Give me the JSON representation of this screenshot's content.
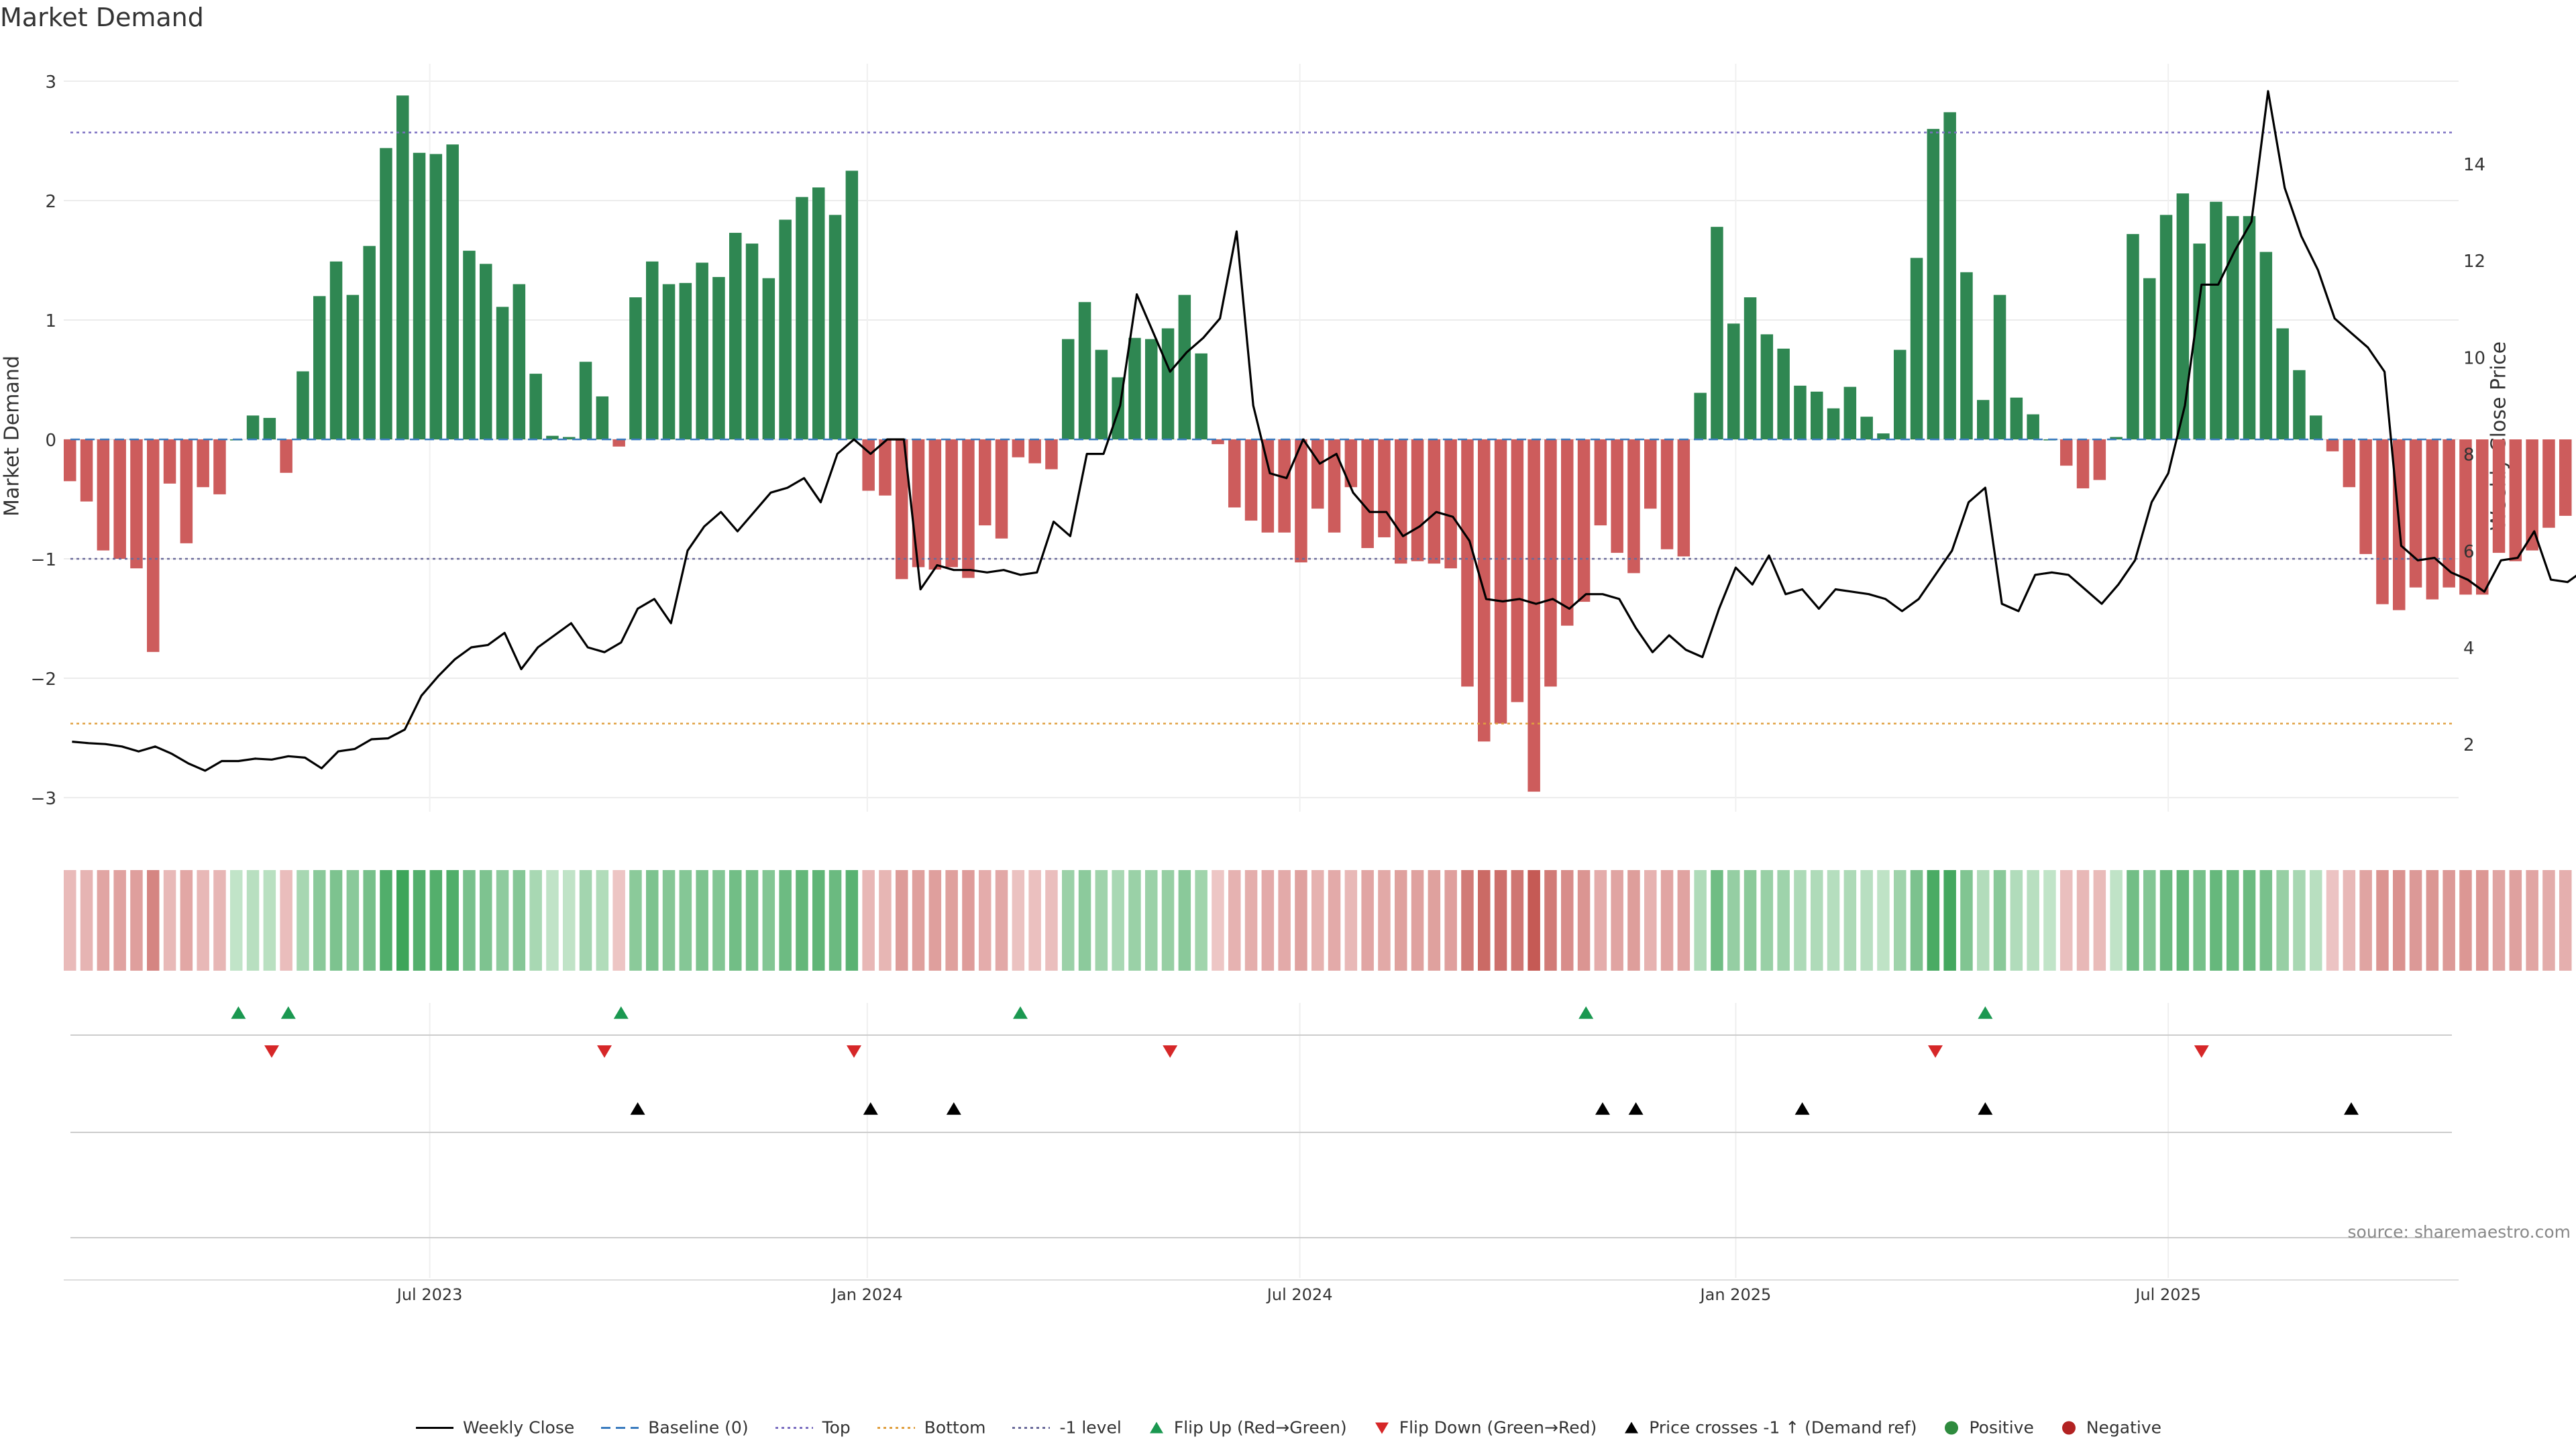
{
  "chart_data": {
    "type": "bar",
    "title": "Market Demand",
    "ylabel_left": "Market Demand",
    "ylabel_right": "Weekly Close Price",
    "source": "source: sharemaestro.com",
    "ylim_left": [
      -3.2,
      3.2
    ],
    "ylim_right": [
      0.4,
      16.2
    ],
    "yticks_left": [
      3,
      2,
      1,
      0,
      -1,
      -2,
      -3
    ],
    "ytick_labels_left": [
      "3",
      "2",
      "1",
      "0",
      "−1",
      "−2",
      "−3"
    ],
    "yticks_right": [
      14,
      12,
      10,
      8,
      6,
      4,
      2
    ],
    "ytick_labels_right": [
      "14",
      "12",
      "10",
      "8",
      "6",
      "4",
      "2"
    ],
    "x_tick_labels": [
      "Jul 2023",
      "Jan 2024",
      "Jul 2024",
      "Jan 2025",
      "Jul 2025"
    ],
    "x_tick_weeks": [
      21.5,
      47.8,
      73.8,
      100.0,
      126.0
    ],
    "levels": {
      "top": 2.57,
      "bottom": -2.38,
      "minus_one": -1.0,
      "baseline": 0
    },
    "demand": [
      -0.35,
      -0.52,
      -0.93,
      -1.0,
      -1.08,
      -1.78,
      -0.37,
      -0.87,
      -0.4,
      -0.46,
      0.0,
      0.2,
      0.18,
      -0.28,
      0.57,
      1.2,
      1.49,
      1.21,
      1.62,
      2.44,
      2.88,
      2.4,
      2.39,
      2.47,
      1.58,
      1.47,
      1.11,
      1.3,
      0.55,
      0.03,
      0.02,
      0.65,
      0.36,
      -0.06,
      1.19,
      1.49,
      1.3,
      1.31,
      1.48,
      1.36,
      1.73,
      1.64,
      1.35,
      1.84,
      2.03,
      2.11,
      1.88,
      2.25,
      -0.43,
      -0.47,
      -1.17,
      -1.07,
      -1.09,
      -1.07,
      -1.16,
      -0.72,
      -0.83,
      -0.15,
      -0.2,
      -0.25,
      0.84,
      1.15,
      0.75,
      0.52,
      0.85,
      0.84,
      0.93,
      1.21,
      0.72,
      -0.04,
      -0.57,
      -0.68,
      -0.78,
      -0.78,
      -1.03,
      -0.58,
      -0.78,
      -0.4,
      -0.91,
      -0.82,
      -1.04,
      -1.02,
      -1.04,
      -1.08,
      -2.07,
      -2.53,
      -2.38,
      -2.2,
      -2.95,
      -2.07,
      -1.56,
      -1.36,
      -0.72,
      -0.95,
      -1.12,
      -0.58,
      -0.92,
      -0.98,
      0.39,
      1.78,
      0.97,
      1.19,
      0.88,
      0.76,
      0.45,
      0.4,
      0.26,
      0.44,
      0.19,
      0.05,
      0.75,
      1.52,
      2.6,
      2.74,
      1.4,
      0.33,
      1.21,
      0.35,
      0.21,
      0.0,
      -0.22,
      -0.41,
      -0.34,
      0.02,
      1.72,
      1.35,
      1.88,
      2.06,
      1.64,
      1.99,
      1.87,
      1.87,
      1.57,
      0.93,
      0.58,
      0.2,
      -0.1,
      -0.4,
      -0.96,
      -1.38,
      -1.43,
      -1.24,
      -1.34,
      -1.24,
      -1.3,
      -1.3,
      -0.95,
      -1.02,
      -0.93,
      -0.74,
      -0.64
    ],
    "price": [
      2.05,
      2.02,
      2.0,
      1.95,
      1.85,
      1.95,
      1.8,
      1.6,
      1.45,
      1.65,
      1.65,
      1.7,
      1.68,
      1.75,
      1.72,
      1.5,
      1.85,
      1.9,
      2.1,
      2.12,
      2.3,
      3.0,
      3.4,
      3.75,
      4.0,
      4.05,
      4.3,
      3.55,
      4.0,
      4.25,
      4.5,
      4.0,
      3.9,
      4.1,
      4.8,
      5.0,
      4.5,
      6.0,
      6.5,
      6.8,
      6.4,
      6.8,
      7.2,
      7.3,
      7.5,
      7.0,
      8.0,
      8.3,
      8.0,
      8.3,
      8.3,
      5.2,
      5.7,
      5.6,
      5.6,
      5.55,
      5.6,
      5.5,
      5.55,
      6.6,
      6.3,
      8.0,
      8.0,
      9.0,
      11.3,
      10.5,
      9.7,
      10.1,
      10.4,
      10.8,
      12.6,
      9.0,
      7.6,
      7.5,
      8.3,
      7.8,
      8.0,
      7.2,
      6.8,
      6.8,
      6.3,
      6.5,
      6.8,
      6.7,
      6.2,
      5.0,
      4.95,
      5.0,
      4.9,
      5.0,
      4.8,
      5.1,
      5.1,
      5.0,
      4.4,
      3.9,
      4.25,
      3.95,
      3.8,
      4.8,
      5.65,
      5.3,
      5.9,
      5.1,
      5.2,
      4.8,
      5.2,
      5.15,
      5.1,
      5.0,
      4.75,
      5.0,
      5.5,
      6.0,
      7.0,
      7.3,
      4.9,
      4.75,
      5.5,
      5.55,
      5.5,
      5.2,
      4.9,
      5.3,
      5.8,
      7.0,
      7.6,
      9.0,
      11.5,
      11.5,
      12.2,
      12.8,
      15.5,
      13.5,
      12.5,
      11.8,
      10.8,
      10.5,
      10.2,
      9.7,
      6.1,
      5.8,
      5.85,
      5.55,
      5.4,
      5.15,
      5.8,
      5.85,
      6.4,
      5.4,
      5.35,
      5.6,
      5.25
    ],
    "flip_up_weeks": [
      10,
      13,
      33,
      57,
      91,
      115
    ],
    "flip_down_weeks": [
      12,
      32,
      47,
      66,
      112,
      128
    ],
    "price_cross_weeks": [
      34,
      48,
      53,
      92,
      94,
      104,
      115,
      137
    ]
  },
  "legend": [
    {
      "label": "Weekly Close",
      "icon": "solid-line-icon",
      "color": "#000000"
    },
    {
      "label": "Baseline (0)",
      "icon": "dashed-line-icon",
      "color": "#3a7bbf"
    },
    {
      "label": "Top",
      "icon": "dotted-line-icon",
      "color": "#7b6fc1"
    },
    {
      "label": "Bottom",
      "icon": "dotted-line-icon",
      "color": "#e0a040"
    },
    {
      "label": "-1 level",
      "icon": "dotted-line-icon",
      "color": "#6a6a9a"
    },
    {
      "label": "Flip Up (Red→Green)",
      "icon": "triangle-up-icon",
      "color": "#1a9850"
    },
    {
      "label": "Flip Down (Green→Red)",
      "icon": "triangle-down-icon",
      "color": "#d62728"
    },
    {
      "label": "Price crosses -1 ↑ (Demand ref)",
      "icon": "triangle-up-icon",
      "color": "#000000"
    },
    {
      "label": "Positive",
      "icon": "circle-icon",
      "color": "#2e8b3e"
    },
    {
      "label": "Negative",
      "icon": "circle-icon",
      "color": "#b22222"
    }
  ],
  "colors": {
    "positive_bar": "#2f8752",
    "negative_bar": "#cd5c5c",
    "price_line": "#000000",
    "top_line": "#7b6fc1",
    "bottom_line": "#e0a040",
    "minus_one_line": "#6a6a9a",
    "baseline": "#3a7bbf"
  }
}
